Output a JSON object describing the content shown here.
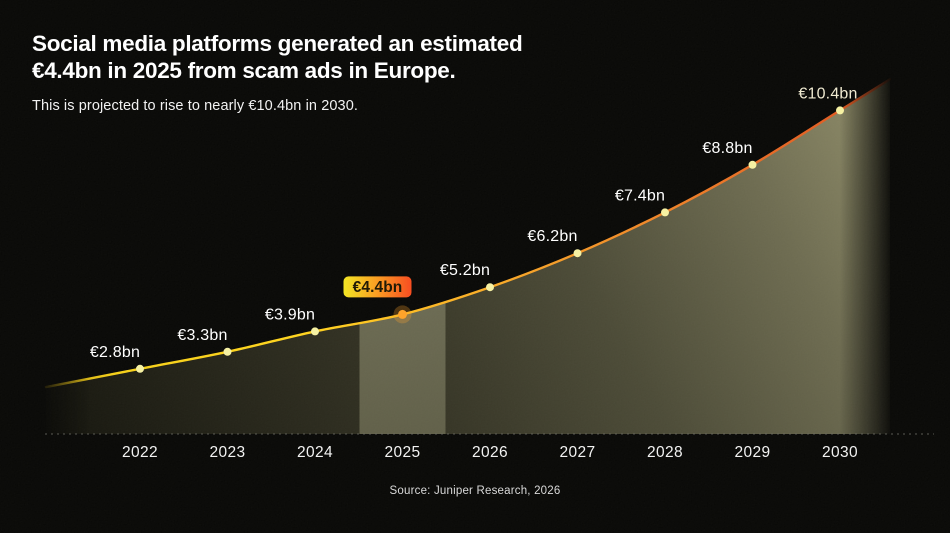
{
  "header": {
    "title_line1": "Social media platforms generated an estimated",
    "title_line2": "€4.4bn in 2025 from scam ads in Europe.",
    "subtitle": "This is projected to rise to nearly €10.4bn in 2030."
  },
  "chart_data": {
    "type": "area",
    "title": "Social media platforms generated an estimated €4.4bn in 2025 from scam ads in Europe.",
    "subtitle": "This is projected to rise to nearly €10.4bn in 2030.",
    "categories": [
      "2022",
      "2023",
      "2024",
      "2025",
      "2026",
      "2027",
      "2028",
      "2029",
      "2030"
    ],
    "values": [
      2.8,
      3.3,
      3.9,
      4.4,
      5.2,
      6.2,
      7.4,
      8.8,
      10.4
    ],
    "unit": "€bn",
    "point_labels": [
      "€2.8bn",
      "€3.3bn",
      "€3.9bn",
      "€4.4bn",
      "€5.2bn",
      "€6.2bn",
      "€7.4bn",
      "€8.8bn",
      "€10.4bn"
    ],
    "highlight_index": 3,
    "highlight_category": "2025",
    "highlight_label": "€4.4bn",
    "xlabel": "",
    "ylabel": "",
    "ylim": [
      0.9,
      11.6
    ],
    "grid": false,
    "legend": false,
    "axis_style": "dashed-baseline",
    "colors": {
      "background": "#060604",
      "line_yellow": "#ffd41c",
      "line_orange": "#dd4f1d",
      "area_dark": "#101009",
      "area_light": "#97946e",
      "band_top": "#7d7c62",
      "band_bottom": "#5f5e47",
      "dot": "#f6f1a1",
      "dot_highlight": "#ffa126",
      "badge_yellow": "#f2e51f",
      "badge_orange": "#f7491c",
      "badge_text": "#1b1500",
      "data_label": "#ffffff",
      "final_data_label": "#efe9d0",
      "axis_line": "#6b6b63",
      "tick_label": "#f2f2f2"
    }
  },
  "footer": {
    "source": "Source: Juniper Research, 2026"
  }
}
